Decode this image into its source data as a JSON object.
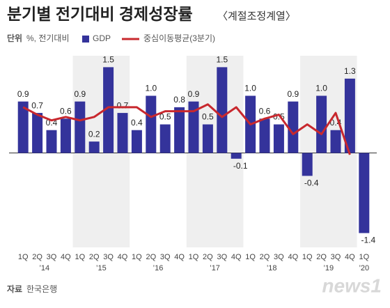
{
  "chart_data": {
    "type": "bar",
    "title": "분기별 전기대비 경제성장률",
    "subtitle": "〈계절조정계열〉",
    "unit_label": "단위",
    "unit": "%, 전기대비",
    "source_label": "자료",
    "source": "한국은행",
    "logo": "news1",
    "categories": [
      "1Q",
      "2Q",
      "3Q",
      "4Q",
      "1Q",
      "2Q",
      "3Q",
      "4Q",
      "1Q",
      "2Q",
      "3Q",
      "4Q",
      "1Q",
      "2Q",
      "3Q",
      "4Q",
      "1Q",
      "2Q",
      "3Q",
      "4Q",
      "1Q",
      "2Q",
      "3Q",
      "4Q",
      "1Q"
    ],
    "year_labels": [
      "’14",
      "’15",
      "’16",
      "’17",
      "’18",
      "’19",
      "’20"
    ],
    "ylim": [
      -1.65,
      1.7
    ],
    "series": [
      {
        "name": "GDP",
        "color": "#34339b",
        "values": [
          0.9,
          0.7,
          0.4,
          0.6,
          0.9,
          0.2,
          1.5,
          0.7,
          0.4,
          1.0,
          0.5,
          0.8,
          0.9,
          0.5,
          1.5,
          -0.1,
          1.0,
          0.6,
          0.5,
          0.9,
          -0.4,
          1.0,
          0.4,
          1.3,
          -1.4
        ],
        "value_labels": [
          "0.9",
          "0.7",
          "0.4",
          "0.6",
          "0.9",
          "0.2",
          "1.5",
          "0.7",
          "0.4",
          "1.0",
          "0.5",
          "0.8",
          "0.9",
          "0.5",
          "1.5",
          "-0.1",
          "1.0",
          "0.6",
          "0.5",
          "0.9",
          "-0.4",
          "1.0",
          "0.4",
          "1.3",
          "-1.4"
        ]
      },
      {
        "name": "중심이동평균(3분기)",
        "color": "#c8282e",
        "type": "line",
        "values": [
          0.8,
          0.67,
          0.57,
          0.63,
          0.57,
          0.63,
          0.8,
          0.8,
          0.8,
          0.63,
          0.73,
          0.73,
          0.73,
          0.85,
          0.63,
          0.8,
          0.5,
          0.6,
          0.67,
          0.33,
          0.5,
          0.33,
          0.7,
          -0.03,
          null
        ]
      }
    ]
  }
}
